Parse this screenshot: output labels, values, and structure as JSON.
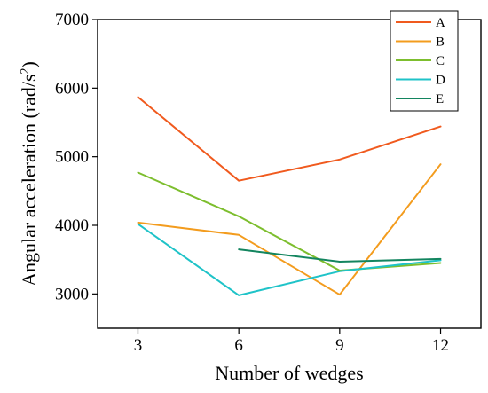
{
  "chart_data": {
    "type": "line",
    "title": "",
    "xlabel": "Number of wedges",
    "ylabel": "Angular acceleration (rad/s",
    "ylabel_superscript": "2",
    "ylabel_suffix": ")",
    "x": [
      3,
      6,
      9,
      12
    ],
    "x_ticks": [
      "3",
      "6",
      "9",
      "12"
    ],
    "xlim": [
      1.8,
      13.2
    ],
    "ylim": [
      2500,
      7000
    ],
    "y_ticks": [
      "3000",
      "4000",
      "5000",
      "6000",
      "7000"
    ],
    "y_tick_values": [
      3000,
      4000,
      5000,
      6000,
      7000
    ],
    "grid": false,
    "legend_position": "top-right",
    "series": [
      {
        "name": "A",
        "color": "#F05A1E",
        "x": [
          3,
          6,
          9,
          12
        ],
        "values": [
          5870,
          4650,
          4960,
          5440
        ]
      },
      {
        "name": "B",
        "color": "#F39C1E",
        "x": [
          3,
          6,
          9,
          12
        ],
        "values": [
          4040,
          3860,
          2990,
          4890
        ]
      },
      {
        "name": "C",
        "color": "#7DBE2E",
        "x": [
          3,
          6,
          9,
          12
        ],
        "values": [
          4770,
          4130,
          3340,
          3450
        ]
      },
      {
        "name": "D",
        "color": "#1FC3C8",
        "x": [
          3,
          6,
          9,
          12
        ],
        "values": [
          4020,
          2980,
          3330,
          3490
        ]
      },
      {
        "name": "E",
        "color": "#13855F",
        "x": [
          6,
          9,
          12
        ],
        "values": [
          3650,
          3470,
          3510
        ]
      }
    ]
  }
}
